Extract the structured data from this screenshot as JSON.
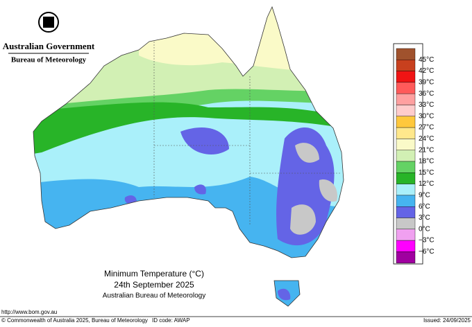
{
  "header": {
    "government": "Australian Government",
    "agency": "Bureau of Meteorology"
  },
  "map": {
    "title": "Minimum Temperature (°C)",
    "date": "24th September 2025",
    "source": "Australian Bureau of Meteorology"
  },
  "legend": {
    "items": [
      {
        "label": "45°C",
        "color": "#a0522d"
      },
      {
        "label": "42°C",
        "color": "#c8401e"
      },
      {
        "label": "39°C",
        "color": "#f01414"
      },
      {
        "label": "36°C",
        "color": "#ff5a5a"
      },
      {
        "label": "33°C",
        "color": "#ffa0a0"
      },
      {
        "label": "30°C",
        "color": "#ffcccc"
      },
      {
        "label": "27°C",
        "color": "#ffc83c"
      },
      {
        "label": "24°C",
        "color": "#ffe88c"
      },
      {
        "label": "21°C",
        "color": "#fafac8"
      },
      {
        "label": "18°C",
        "color": "#d2f0b4"
      },
      {
        "label": "15°C",
        "color": "#64d264"
      },
      {
        "label": "12°C",
        "color": "#28b428"
      },
      {
        "label": "9°C",
        "color": "#aaf0fa"
      },
      {
        "label": "6°C",
        "color": "#46b4f0"
      },
      {
        "label": "3°C",
        "color": "#6464e6"
      },
      {
        "label": "0°C",
        "color": "#c8c8c8"
      },
      {
        "label": "−3°C",
        "color": "#f0a0f0"
      },
      {
        "label": "−6°C",
        "color": "#ff00ff"
      }
    ],
    "bottom_color": "#a000a0"
  },
  "footer": {
    "url": "http://www.bom.gov.au",
    "copyright": "© Commonwealth of Australia 2025, Bureau of Meteorology",
    "id_code": "ID code: AWAP",
    "issued": "Issued: 24/09/2025"
  }
}
